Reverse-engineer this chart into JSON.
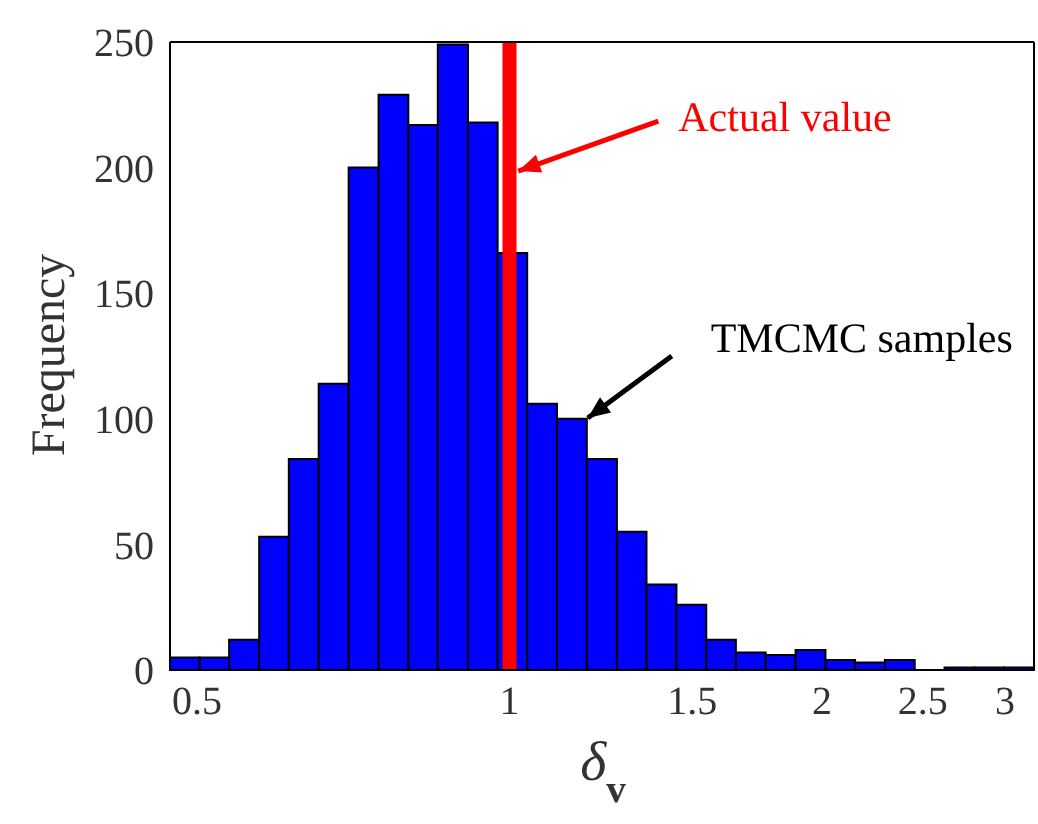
{
  "chart_data": {
    "type": "histogram",
    "xlabel": "δ$_{v}$",
    "ylabel": "Frequency",
    "bins": [
      0.471,
      0.503,
      0.537,
      0.574,
      0.613,
      0.655,
      0.7,
      0.748,
      0.799,
      0.853,
      0.912,
      0.974,
      1.04,
      1.111,
      1.187,
      1.269,
      1.355,
      1.448,
      1.547,
      1.652,
      1.765,
      1.886,
      2.015,
      2.152,
      2.299,
      2.456,
      2.624,
      2.803,
      2.995,
      3.2
    ],
    "values": [
      5,
      5,
      12,
      53,
      84,
      114,
      200,
      229,
      217,
      249,
      218,
      166,
      106,
      100,
      84,
      55,
      34,
      26,
      12,
      7,
      6,
      8,
      4,
      3,
      4,
      0,
      1,
      1,
      1
    ],
    "color": "#0000ff",
    "log": "x",
    "xlim": [
      0.471,
      3.2
    ],
    "xticks": [
      0.5,
      1,
      1.5,
      2,
      2.5,
      3
    ],
    "ylim": [
      0,
      250
    ],
    "yticks": [
      0,
      50,
      100,
      150,
      200,
      250
    ],
    "ref_lines": [
      {
        "axis": "x",
        "value": 1,
        "color": "#ff0000"
      }
    ],
    "annotations": [
      {
        "text": "Actual value",
        "x": 1,
        "y": 198
      },
      {
        "text": "TMCMC samples",
        "x": 1.187,
        "y": 100
      }
    ]
  }
}
